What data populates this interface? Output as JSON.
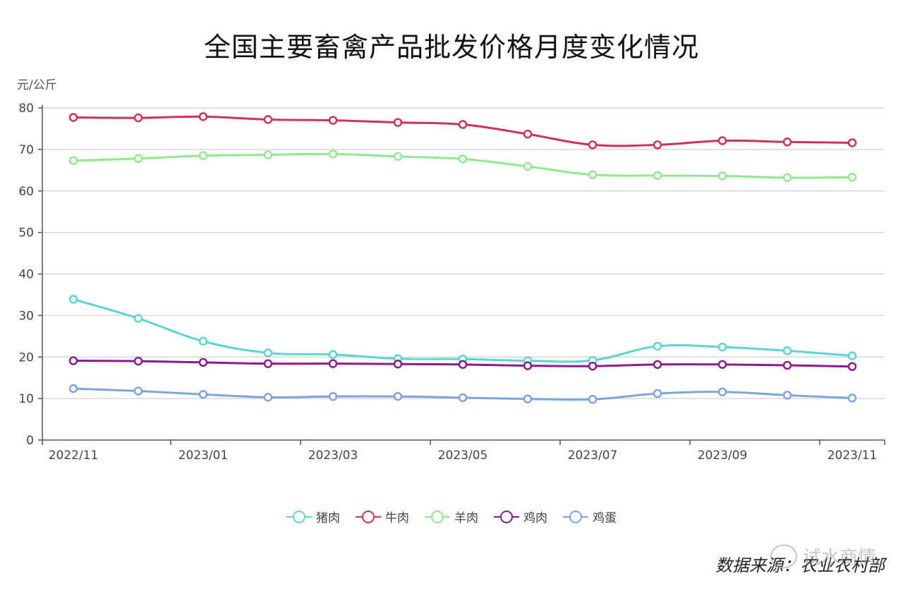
{
  "page": {
    "title": "全国主要畜禽产品批发价格月度变化情况",
    "unit": "元/公斤",
    "source": "数据来源：农业农村部",
    "watermark": "试水商情"
  },
  "chart_data": {
    "type": "line",
    "title": "全国主要畜禽产品批发价格月度变化情况",
    "ylabel": "元/公斤",
    "xlabel": "",
    "ylim": [
      0,
      80
    ],
    "yticks": [
      0,
      10,
      20,
      30,
      40,
      50,
      60,
      70,
      80
    ],
    "x": [
      "2022/11",
      "2022/12",
      "2023/01",
      "2023/02",
      "2023/03",
      "2023/04",
      "2023/05",
      "2023/06",
      "2023/07",
      "2023/08",
      "2023/09",
      "2023/10",
      "2023/11"
    ],
    "xticklabels": [
      "2022/11",
      "2023/01",
      "2023/03",
      "2023/05",
      "2023/07",
      "2023/09",
      "2023/11"
    ],
    "grid": true,
    "legend_position": "bottom",
    "series": [
      {
        "name": "猪肉",
        "color": "#5cd6cc",
        "values": [
          33.9,
          29.3,
          23.8,
          21.0,
          20.6,
          19.6,
          19.5,
          19.1,
          19.2,
          22.6,
          22.4,
          21.5,
          20.3
        ]
      },
      {
        "name": "牛肉",
        "color": "#cc3355",
        "values": [
          77.7,
          77.6,
          77.9,
          77.2,
          77.0,
          76.5,
          76.0,
          73.7,
          71.1,
          71.1,
          72.1,
          71.8,
          71.6
        ]
      },
      {
        "name": "羊肉",
        "color": "#90e890",
        "values": [
          67.3,
          67.8,
          68.5,
          68.7,
          68.9,
          68.3,
          67.7,
          65.9,
          63.9,
          63.7,
          63.6,
          63.2,
          63.3
        ]
      },
      {
        "name": "鸡肉",
        "color": "#8b1a8b",
        "values": [
          19.1,
          19.0,
          18.7,
          18.4,
          18.4,
          18.3,
          18.2,
          17.9,
          17.8,
          18.2,
          18.2,
          18.0,
          17.7
        ]
      },
      {
        "name": "鸡蛋",
        "color": "#7fa3dc",
        "values": [
          12.4,
          11.8,
          11.0,
          10.3,
          10.5,
          10.5,
          10.2,
          9.9,
          9.8,
          11.2,
          11.6,
          10.8,
          10.1
        ]
      }
    ]
  }
}
